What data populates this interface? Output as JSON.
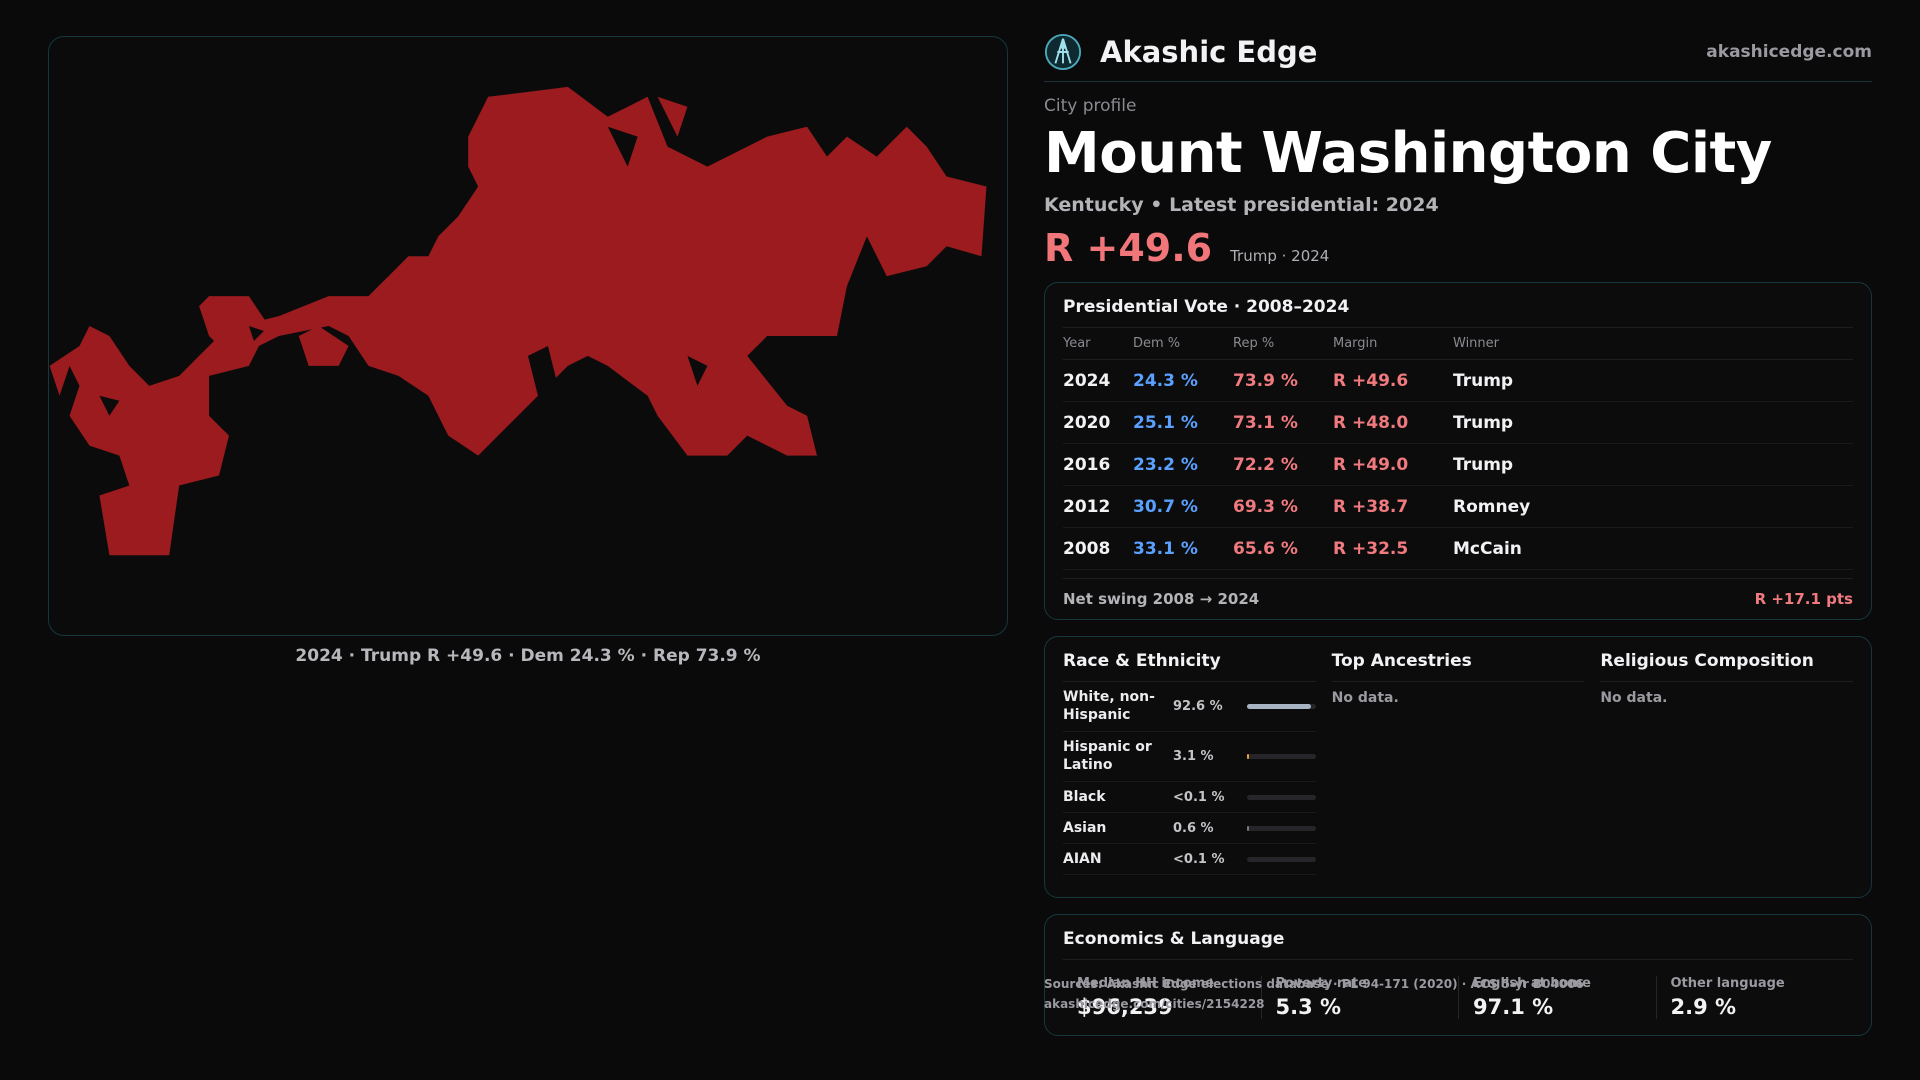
{
  "map": {
    "caption": "2024 · Trump R +49.6 · Dem 24.3 % · Rep 73.9 %",
    "fill_color": "#9b1b1e"
  },
  "header": {
    "brand_name": "Akashic Edge",
    "site": "akashicedge.com",
    "eyebrow": "City profile",
    "city_name": "Mount Washington City",
    "subtitle": "Kentucky • Latest presidential: 2024",
    "margin_big": "R +49.6",
    "margin_note": "Trump · 2024"
  },
  "vote_table": {
    "title": "Presidential Vote · 2008–2024",
    "columns": [
      "Year",
      "Dem %",
      "Rep %",
      "Margin",
      "Winner"
    ],
    "rows": [
      {
        "year": "2024",
        "dem": "24.3 %",
        "rep": "73.9 %",
        "margin": "R +49.6",
        "winner": "Trump"
      },
      {
        "year": "2020",
        "dem": "25.1 %",
        "rep": "73.1 %",
        "margin": "R +48.0",
        "winner": "Trump"
      },
      {
        "year": "2016",
        "dem": "23.2 %",
        "rep": "72.2 %",
        "margin": "R +49.0",
        "winner": "Trump"
      },
      {
        "year": "2012",
        "dem": "30.7 %",
        "rep": "69.3 %",
        "margin": "R +38.7",
        "winner": "Romney"
      },
      {
        "year": "2008",
        "dem": "33.1 %",
        "rep": "65.6 %",
        "margin": "R +32.5",
        "winner": "McCain"
      }
    ],
    "net_label": "Net swing 2008 → 2024",
    "net_value": "R +17.1 pts"
  },
  "demographics": {
    "race_title": "Race & Ethnicity",
    "race": [
      {
        "name": "White, non-Hispanic",
        "pct": "92.6 %",
        "share": 0.926,
        "color": "#a8b4c4"
      },
      {
        "name": "Hispanic or Latino",
        "pct": "3.1 %",
        "share": 0.031,
        "color": "#e8a030"
      },
      {
        "name": "Black",
        "pct": "<0.1 %",
        "share": 0.0,
        "color": "#7a7a80"
      },
      {
        "name": "Asian",
        "pct": "0.6 %",
        "share": 0.006,
        "color": "#7a7a80"
      },
      {
        "name": "AIAN",
        "pct": "<0.1 %",
        "share": 0.0,
        "color": "#7a7a80"
      }
    ],
    "ancestry_title": "Top Ancestries",
    "ancestry_empty": "No data.",
    "religion_title": "Religious Composition",
    "religion_empty": "No data."
  },
  "economics": {
    "title": "Economics & Language",
    "items": [
      {
        "label": "Median HH income",
        "value": "$96,239"
      },
      {
        "label": "Poverty rate",
        "value": "5.3 %"
      },
      {
        "label": "English at home",
        "value": "97.1 %"
      },
      {
        "label": "Other language",
        "value": "2.9 %"
      }
    ]
  },
  "footer": {
    "source_line": "Sources: Akashic Edge elections database · PL 94-171 (2020) · ACS 5-yr B04006",
    "url": "akashicedge.com/cities/2154228"
  }
}
